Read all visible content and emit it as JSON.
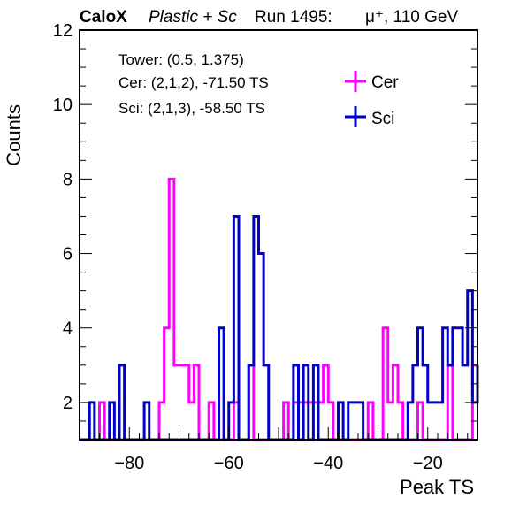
{
  "header": {
    "experiment": "CaloX",
    "config": "Plastic + Sc",
    "run": "Run 1495:",
    "beam": "μ⁺, 110 GeV"
  },
  "info_box": {
    "tower": "Tower: (0.5, 1.375)",
    "cer": "Cer: (2,1,2), -71.50 TS",
    "sci": "Sci: (2,1,3), -58.50 TS"
  },
  "colors": {
    "cer": "#ff00ff",
    "sci": "#0000cc",
    "axis": "#000000"
  },
  "chart_data": {
    "type": "line",
    "subtype": "step-histogram",
    "xlabel": "Peak TS",
    "ylabel": "Counts",
    "xlim": [
      -90,
      -10
    ],
    "ylim": [
      1,
      12
    ],
    "x_ticks": [
      -80,
      -60,
      -40,
      -20
    ],
    "y_ticks": [
      2,
      4,
      6,
      8,
      10,
      12
    ],
    "bin_width": 1,
    "legend_position": "top-right",
    "series": [
      {
        "name": "Cer",
        "color": "#ff00ff",
        "points": [
          [
            -90,
            1
          ],
          [
            -86,
            2
          ],
          [
            -85,
            1
          ],
          [
            -74,
            2
          ],
          [
            -73,
            4
          ],
          [
            -72,
            8
          ],
          [
            -71,
            3
          ],
          [
            -68,
            2
          ],
          [
            -67,
            3
          ],
          [
            -66,
            1
          ],
          [
            -64,
            2
          ],
          [
            -63,
            1
          ],
          [
            -59,
            2
          ],
          [
            -58,
            1
          ],
          [
            -56,
            3
          ],
          [
            -55,
            1
          ],
          [
            -49,
            2
          ],
          [
            -48,
            1
          ],
          [
            -47,
            2
          ],
          [
            -41,
            3
          ],
          [
            -40,
            2
          ],
          [
            -39,
            1
          ],
          [
            -32,
            2
          ],
          [
            -31,
            1
          ],
          [
            -29,
            4
          ],
          [
            -28,
            2
          ],
          [
            -27,
            3
          ],
          [
            -26,
            2
          ],
          [
            -25,
            1
          ],
          [
            -22,
            2
          ],
          [
            -21,
            1
          ],
          [
            -16,
            3
          ],
          [
            -15,
            1
          ],
          [
            -11,
            3
          ],
          [
            -10,
            3
          ]
        ]
      },
      {
        "name": "Sci",
        "color": "#0000cc",
        "points": [
          [
            -90,
            1
          ],
          [
            -88,
            2
          ],
          [
            -87,
            1
          ],
          [
            -84,
            2
          ],
          [
            -83,
            1
          ],
          [
            -82,
            3
          ],
          [
            -81,
            1
          ],
          [
            -77,
            2
          ],
          [
            -76,
            1
          ],
          [
            -62,
            4
          ],
          [
            -61,
            1
          ],
          [
            -60,
            2
          ],
          [
            -59,
            7
          ],
          [
            -58,
            1
          ],
          [
            -56,
            3
          ],
          [
            -55,
            7
          ],
          [
            -54,
            6
          ],
          [
            -53,
            3
          ],
          [
            -52,
            1
          ],
          [
            -47,
            3
          ],
          [
            -46,
            1
          ],
          [
            -45,
            3
          ],
          [
            -44,
            1
          ],
          [
            -43,
            3
          ],
          [
            -42,
            1
          ],
          [
            -38,
            2
          ],
          [
            -37,
            1
          ],
          [
            -36,
            2
          ],
          [
            -33,
            1
          ],
          [
            -24,
            2
          ],
          [
            -23,
            3
          ],
          [
            -22,
            4
          ],
          [
            -21,
            3
          ],
          [
            -20,
            2
          ],
          [
            -17,
            4
          ],
          [
            -16,
            3
          ],
          [
            -15,
            4
          ],
          [
            -13,
            3
          ],
          [
            -12,
            5
          ],
          [
            -11,
            2
          ],
          [
            -10,
            3
          ]
        ]
      }
    ]
  }
}
